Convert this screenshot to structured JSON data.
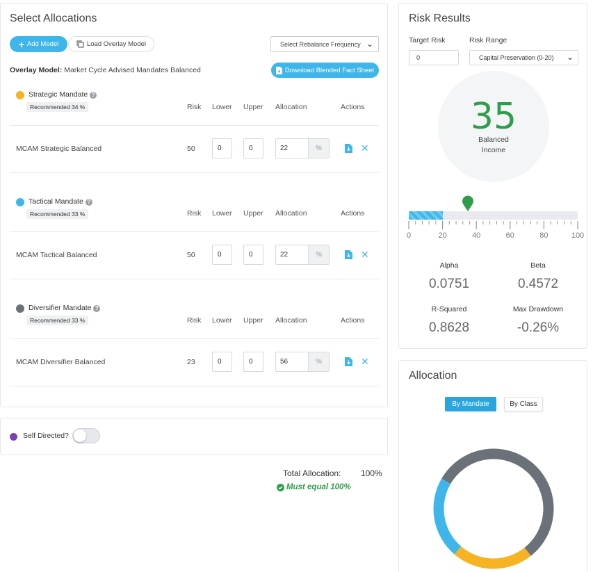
{
  "allocations": {
    "title": "Select Allocations",
    "add_model_label": "Add Model",
    "load_overlay_label": "Load Overlay Model",
    "rebalance_select": "Select Rebalance Frequency",
    "overlay_label": "Overlay Model:",
    "overlay_value": "Market Cycle Advised Mandates Balanced",
    "download_label": "Download Blended Fact Sheet",
    "columns": {
      "risk": "Risk",
      "lower": "Lower",
      "upper": "Upper",
      "allocation": "Allocation",
      "actions": "Actions"
    },
    "mandates": [
      {
        "name": "Strategic Mandate",
        "color": "#f6b324",
        "recommended": "Recommended 34 %",
        "row_name": "MCAM Strategic Balanced",
        "risk": "50",
        "lower": "0",
        "upper": "0",
        "allocation": "22",
        "pct": "%"
      },
      {
        "name": "Tactical Mandate",
        "color": "#3fb6ea",
        "recommended": "Recommended 33 %",
        "row_name": "MCAM Tactical Balanced",
        "risk": "50",
        "lower": "0",
        "upper": "0",
        "allocation": "22",
        "pct": "%"
      },
      {
        "name": "Diversifier Mandate",
        "color": "#6b7178",
        "recommended": "Recommended 33 %",
        "row_name": "MCAM Diversifier Balanced",
        "risk": "23",
        "lower": "0",
        "upper": "0",
        "allocation": "56",
        "pct": "%"
      }
    ],
    "self_directed_label": "Self Directed?",
    "self_directed_color": "#7b3fb8",
    "total_label": "Total Allocation:",
    "total_value": "100%",
    "must_equal": "Must equal 100%"
  },
  "risk": {
    "title": "Risk Results",
    "target_risk_label": "Target Risk",
    "target_risk_value": "0",
    "risk_range_label": "Risk Range",
    "risk_range_value": "Capital Preservation (0-20)",
    "score": "35",
    "score_label_1": "Balanced",
    "score_label_2": "Income",
    "scale_fill_max": 20,
    "marker_value": 35,
    "scale_ticks": [
      "0",
      "20",
      "40",
      "60",
      "80",
      "100"
    ],
    "metrics": [
      {
        "label": "Alpha",
        "value": "0.0751"
      },
      {
        "label": "Beta",
        "value": "0.4572"
      },
      {
        "label": "R-Squared",
        "value": "0.8628"
      },
      {
        "label": "Max Drawdown",
        "value": "-0.26%"
      }
    ]
  },
  "allocation_chart": {
    "title": "Allocation",
    "tab_mandate": "By Mandate",
    "tab_class": "By Class",
    "slices": [
      {
        "name": "Diversifier Mandate",
        "value": 56,
        "color": "#6b7178"
      },
      {
        "name": "Strategic Mandate",
        "value": 22,
        "color": "#f6b324"
      },
      {
        "name": "Tactical Mandate",
        "value": 22,
        "color": "#3fb6ea"
      }
    ]
  }
}
